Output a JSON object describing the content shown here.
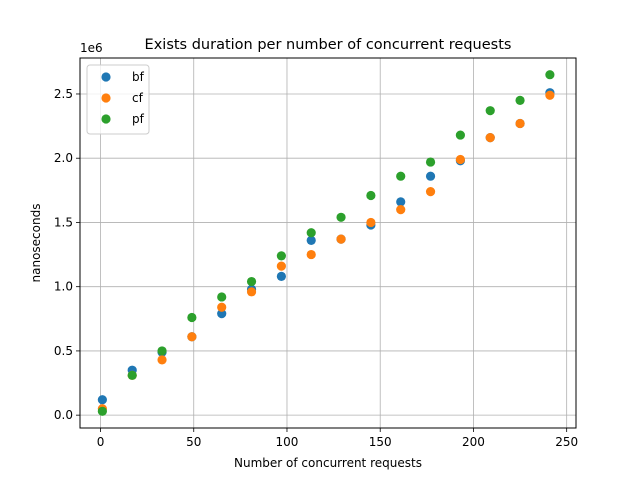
{
  "chart_data": {
    "type": "scatter",
    "title": "Exists duration per number of concurrent requests",
    "xlabel": "Number of concurrent requests",
    "ylabel": "nanoseconds",
    "y_offset_label": "1e6",
    "y_scale_factor": 1000000,
    "xlim": [
      -11,
      255
    ],
    "ylim": [
      -100000,
      2780000
    ],
    "xticks": [
      0,
      50,
      100,
      150,
      200,
      250
    ],
    "xtick_labels": [
      "0",
      "50",
      "100",
      "150",
      "200",
      "250"
    ],
    "yticks": [
      0,
      500000,
      1000000,
      1500000,
      2000000,
      2500000
    ],
    "ytick_labels": [
      "0.0",
      "0.5",
      "1.0",
      "1.5",
      "2.0",
      "2.5"
    ],
    "grid": true,
    "legend_position": "top-left",
    "x": [
      1,
      17,
      33,
      49,
      65,
      81,
      97,
      113,
      129,
      145,
      161,
      177,
      193,
      209,
      225,
      241
    ],
    "series": [
      {
        "name": "bf",
        "color": "#1f77b4",
        "values": [
          120000,
          350000,
          490000,
          610000,
          790000,
          980000,
          1080000,
          1360000,
          1370000,
          1480000,
          1660000,
          1860000,
          1980000,
          2160000,
          2270000,
          2510000
        ]
      },
      {
        "name": "cf",
        "color": "#ff7f0e",
        "values": [
          50000,
          310000,
          430000,
          610000,
          840000,
          960000,
          1160000,
          1250000,
          1370000,
          1500000,
          1600000,
          1740000,
          1990000,
          2160000,
          2270000,
          2490000
        ]
      },
      {
        "name": "pf",
        "color": "#2ca02c",
        "values": [
          30000,
          310000,
          500000,
          760000,
          920000,
          1040000,
          1240000,
          1420000,
          1540000,
          1710000,
          1860000,
          1970000,
          2180000,
          2370000,
          2450000,
          2650000
        ]
      }
    ]
  }
}
